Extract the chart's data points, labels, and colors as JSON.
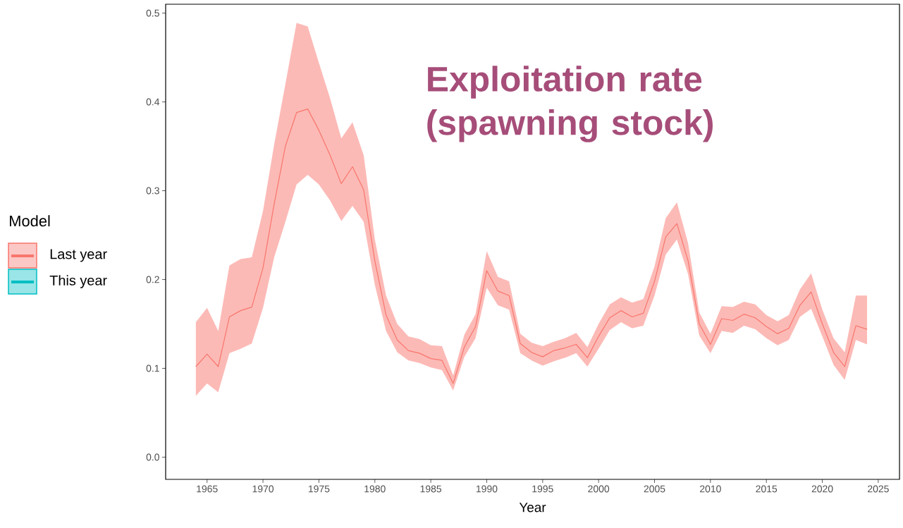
{
  "chart_data": {
    "type": "line",
    "title": "Exploitation rate (spawning stock)",
    "xlabel": "Year",
    "legend_title": "Model",
    "legend": "left",
    "marker": "none",
    "line_style": "solid",
    "x": [
      1964,
      1965,
      1966,
      1967,
      1968,
      1969,
      1970,
      1971,
      1972,
      1973,
      1974,
      1975,
      1976,
      1977,
      1978,
      1979,
      1980,
      1981,
      1982,
      1983,
      1984,
      1985,
      1986,
      1987,
      1988,
      1989,
      1990,
      1991,
      1992,
      1993,
      1994,
      1995,
      1996,
      1997,
      1998,
      1999,
      2000,
      2001,
      2002,
      2003,
      2004,
      2005,
      2006,
      2007,
      2008,
      2009,
      2010,
      2011,
      2012,
      2013,
      2014,
      2015,
      2016,
      2017,
      2018,
      2019,
      2020,
      2021,
      2022,
      2023,
      2024
    ],
    "series": [
      {
        "name": "Last year",
        "color": "#f8766d",
        "values": [
          0.102,
          0.116,
          0.102,
          0.158,
          0.165,
          0.169,
          0.213,
          0.285,
          0.35,
          0.388,
          0.392,
          0.368,
          0.34,
          0.308,
          0.327,
          0.301,
          0.221,
          0.16,
          0.132,
          0.12,
          0.117,
          0.111,
          0.109,
          0.083,
          0.124,
          0.147,
          0.21,
          0.187,
          0.182,
          0.128,
          0.118,
          0.113,
          0.12,
          0.123,
          0.127,
          0.112,
          0.136,
          0.157,
          0.165,
          0.158,
          0.162,
          0.198,
          0.248,
          0.263,
          0.221,
          0.15,
          0.127,
          0.156,
          0.154,
          0.161,
          0.157,
          0.147,
          0.139,
          0.145,
          0.171,
          0.186,
          0.15,
          0.118,
          0.102,
          0.148,
          0.144
        ],
        "lower": [
          0.069,
          0.083,
          0.073,
          0.117,
          0.122,
          0.128,
          0.168,
          0.225,
          0.265,
          0.307,
          0.318,
          0.307,
          0.289,
          0.266,
          0.283,
          0.265,
          0.194,
          0.142,
          0.118,
          0.109,
          0.106,
          0.101,
          0.098,
          0.075,
          0.113,
          0.134,
          0.191,
          0.171,
          0.166,
          0.117,
          0.109,
          0.103,
          0.108,
          0.112,
          0.117,
          0.102,
          0.122,
          0.143,
          0.152,
          0.145,
          0.148,
          0.182,
          0.228,
          0.245,
          0.206,
          0.137,
          0.117,
          0.142,
          0.14,
          0.148,
          0.144,
          0.134,
          0.126,
          0.132,
          0.158,
          0.167,
          0.136,
          0.104,
          0.087,
          0.132,
          0.127
        ],
        "upper": [
          0.152,
          0.168,
          0.142,
          0.216,
          0.223,
          0.225,
          0.277,
          0.352,
          0.42,
          0.489,
          0.485,
          0.444,
          0.404,
          0.359,
          0.377,
          0.34,
          0.245,
          0.182,
          0.15,
          0.136,
          0.133,
          0.126,
          0.125,
          0.092,
          0.138,
          0.161,
          0.232,
          0.203,
          0.198,
          0.139,
          0.129,
          0.125,
          0.13,
          0.134,
          0.14,
          0.124,
          0.15,
          0.172,
          0.18,
          0.174,
          0.178,
          0.215,
          0.269,
          0.287,
          0.241,
          0.163,
          0.139,
          0.17,
          0.169,
          0.175,
          0.172,
          0.16,
          0.153,
          0.16,
          0.189,
          0.207,
          0.166,
          0.134,
          0.118,
          0.182,
          0.182
        ]
      },
      {
        "name": "This year",
        "color": "#00bfc4",
        "values": [
          null,
          null,
          null,
          null,
          null,
          null,
          null,
          null,
          null,
          null,
          null,
          null,
          null,
          null,
          null,
          null,
          null,
          null,
          null,
          null,
          null,
          null,
          null,
          null,
          null,
          null,
          null,
          null,
          null,
          null,
          null,
          null,
          null,
          null,
          null,
          null,
          null,
          null,
          null,
          null,
          null,
          null,
          null,
          null,
          null,
          null,
          null,
          null,
          null,
          null,
          null,
          null,
          null,
          null,
          null,
          null,
          null,
          null,
          null,
          null,
          null
        ]
      }
    ],
    "xlim": [
      1961.3,
      2026.9
    ],
    "ylim": [
      -0.025,
      0.51
    ],
    "xticks": [
      1965,
      1970,
      1975,
      1980,
      1985,
      1990,
      1995,
      2000,
      2005,
      2010,
      2015,
      2020,
      2025
    ],
    "yticks": [
      {
        "value": 0,
        "label": "0.0"
      },
      {
        "value": 0.1,
        "label": "0.1"
      },
      {
        "value": 0.2,
        "label": "0.2"
      },
      {
        "value": 0.3,
        "label": "0.3"
      },
      {
        "value": 0.4,
        "label": "0.4"
      },
      {
        "value": 0.5,
        "label": "0.5"
      }
    ]
  }
}
